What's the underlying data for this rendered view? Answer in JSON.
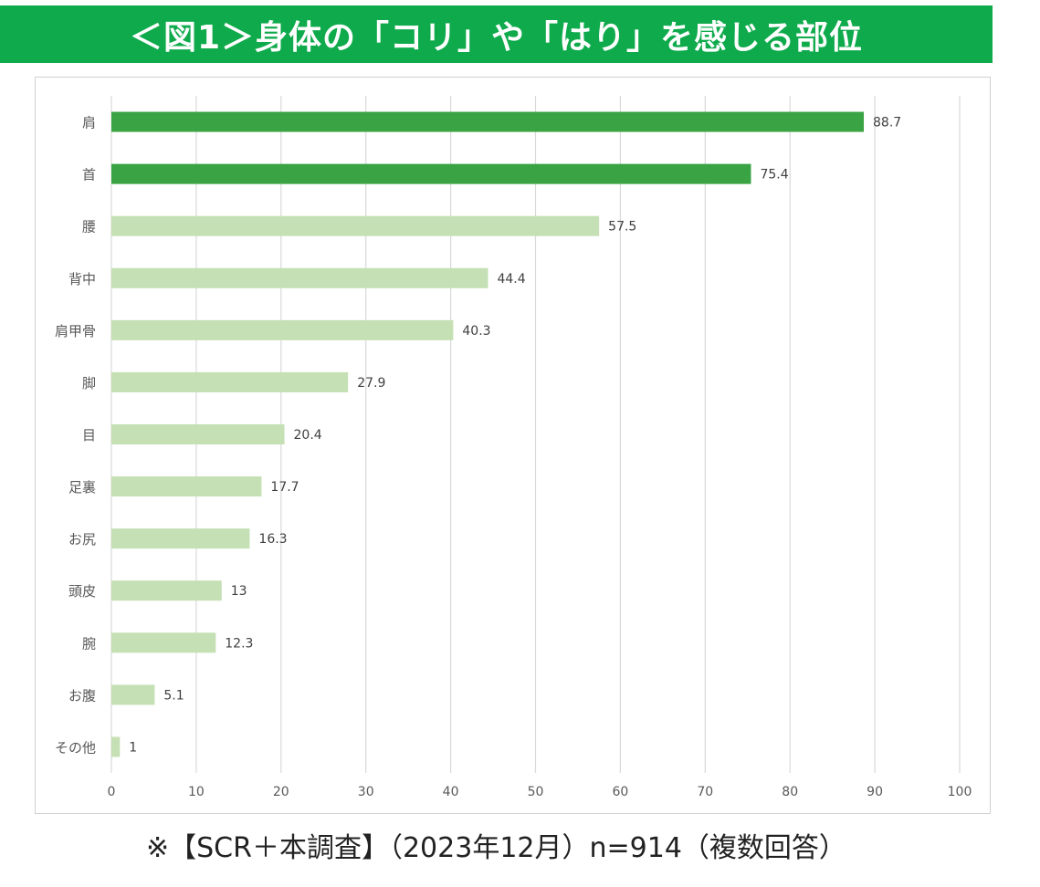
{
  "title": "＜図1＞身体の「コリ」や「はり」を感じる部位",
  "footnote": "※【SCR＋本調査】（2023年12月）n=914（複数回答）",
  "colors": {
    "title_bg": "#0eaa4b",
    "bar_highlight": "#3aa344",
    "bar_normal": "#c5e0b4",
    "grid": "#d9d9d9",
    "text": "#595959"
  },
  "chart_data": {
    "type": "bar",
    "orientation": "horizontal",
    "categories": [
      "肩",
      "首",
      "腰",
      "背中",
      "肩甲骨",
      "脚",
      "目",
      "足裏",
      "お尻",
      "頭皮",
      "腕",
      "お腹",
      "その他"
    ],
    "values": [
      88.7,
      75.4,
      57.5,
      44.4,
      40.3,
      27.9,
      20.4,
      17.7,
      16.3,
      13,
      12.3,
      5.1,
      1
    ],
    "value_labels": [
      "88.7",
      "75.4",
      "57.5",
      "44.4",
      "40.3",
      "27.9",
      "20.4",
      "17.7",
      "16.3",
      "13",
      "12.3",
      "5.1",
      "1"
    ],
    "highlighted": [
      true,
      true,
      false,
      false,
      false,
      false,
      false,
      false,
      false,
      false,
      false,
      false,
      false
    ],
    "xlim": [
      0,
      100
    ],
    "xticks": [
      0,
      10,
      20,
      30,
      40,
      50,
      60,
      70,
      80,
      90,
      100
    ],
    "grid": "vertical",
    "xlabel": "",
    "ylabel": ""
  }
}
